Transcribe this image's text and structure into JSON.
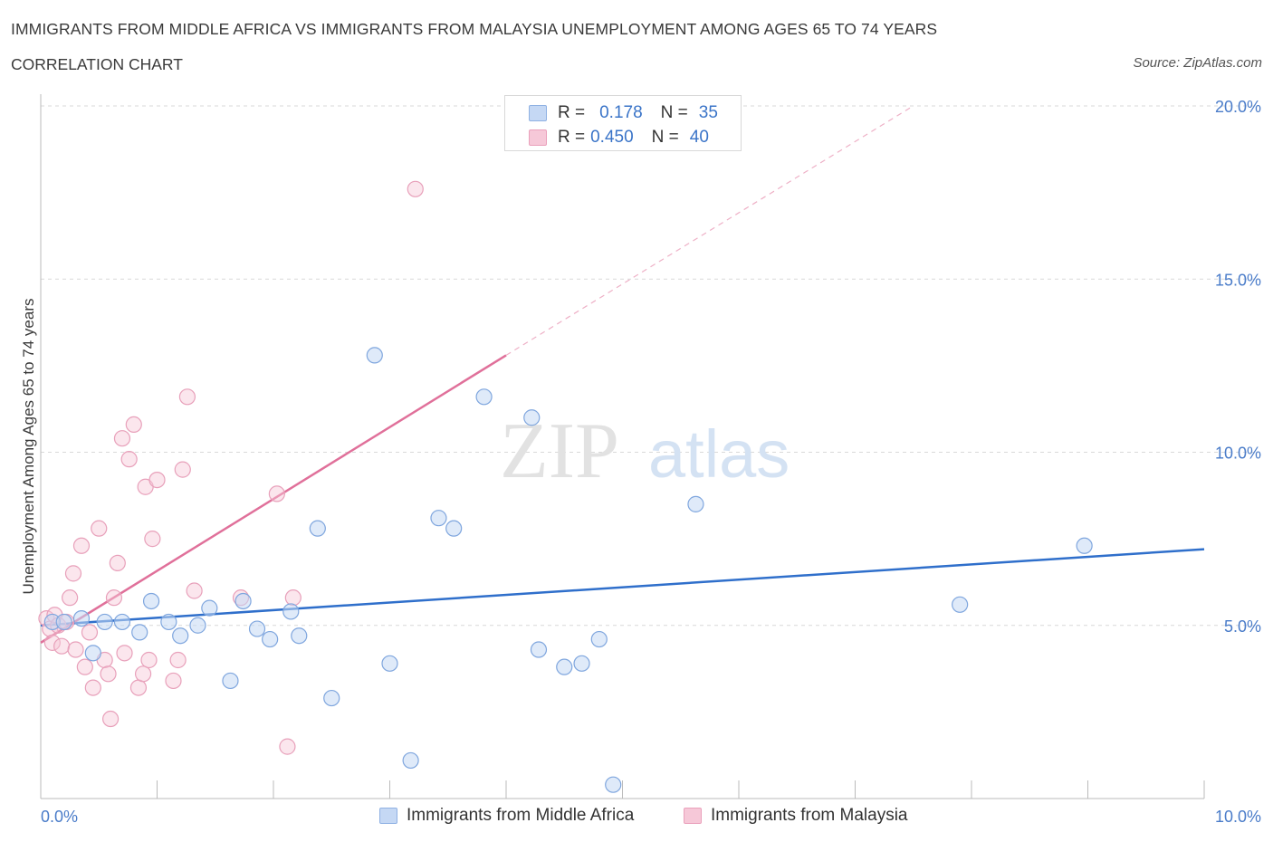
{
  "header": {
    "title": "IMMIGRANTS FROM MIDDLE AFRICA VS IMMIGRANTS FROM MALAYSIA UNEMPLOYMENT AMONG AGES 65 TO 74 YEARS",
    "subtitle": "CORRELATION CHART",
    "source": "Source: ZipAtlas.com"
  },
  "colors": {
    "blue": "#2f6fcb",
    "blue_fill": "#c5d8f4",
    "pink": "#e0709a",
    "pink_fill": "#f6c8d8",
    "grid": "#d9d9d9",
    "axis_text": "#4a7cc9"
  },
  "legend": {
    "blue": {
      "r_label": "R =",
      "r_value": "0.178",
      "n_label": "N =",
      "n_value": "35"
    },
    "pink": {
      "r_label": "R =",
      "r_value": "0.450",
      "n_label": "N =",
      "n_value": "40"
    }
  },
  "bottom_legend": {
    "blue": "Immigrants from Middle Africa",
    "pink": "Immigrants from Malaysia"
  },
  "watermark": {
    "zip": "ZIP",
    "atlas": "atlas"
  },
  "chart_data": {
    "type": "scatter",
    "title": "IMMIGRANTS FROM MIDDLE AFRICA VS IMMIGRANTS FROM MALAYSIA UNEMPLOYMENT AMONG AGES 65 TO 74 YEARS",
    "xlabel": "",
    "ylabel": "Unemployment Among Ages 65 to 74 years",
    "xlim": [
      0,
      10
    ],
    "ylim": [
      0,
      20
    ],
    "x_tick_labels": [
      "0.0%",
      "10.0%"
    ],
    "y_ticks": [
      5,
      10,
      15,
      20
    ],
    "y_tick_labels": [
      "5.0%",
      "10.0%",
      "15.0%",
      "20.0%"
    ],
    "grid": true,
    "legend_position": "top-center",
    "series": [
      {
        "name": "Immigrants from Middle Africa",
        "color": "#2f6fcb",
        "r": 0.178,
        "n": 35,
        "trend": {
          "x0": 0.0,
          "y0": 5.0,
          "x1": 10.0,
          "y1": 7.2
        },
        "points": [
          [
            0.1,
            5.1
          ],
          [
            0.2,
            5.1
          ],
          [
            0.35,
            5.2
          ],
          [
            0.45,
            4.2
          ],
          [
            0.55,
            5.1
          ],
          [
            0.7,
            5.1
          ],
          [
            0.85,
            4.8
          ],
          [
            0.95,
            5.7
          ],
          [
            1.1,
            5.1
          ],
          [
            1.2,
            4.7
          ],
          [
            1.35,
            5.0
          ],
          [
            1.45,
            5.5
          ],
          [
            1.63,
            3.4
          ],
          [
            1.74,
            5.7
          ],
          [
            1.86,
            4.9
          ],
          [
            1.97,
            4.6
          ],
          [
            2.15,
            5.4
          ],
          [
            2.22,
            4.7
          ],
          [
            2.38,
            7.8
          ],
          [
            2.5,
            2.9
          ],
          [
            2.87,
            12.8
          ],
          [
            3.0,
            3.9
          ],
          [
            3.18,
            1.1
          ],
          [
            3.42,
            8.1
          ],
          [
            3.55,
            7.8
          ],
          [
            3.81,
            11.6
          ],
          [
            4.22,
            11.0
          ],
          [
            4.28,
            4.3
          ],
          [
            4.5,
            3.8
          ],
          [
            4.65,
            3.9
          ],
          [
            4.8,
            4.6
          ],
          [
            4.92,
            0.4
          ],
          [
            5.63,
            8.5
          ],
          [
            7.9,
            5.6
          ],
          [
            8.97,
            7.3
          ]
        ]
      },
      {
        "name": "Immigrants from Malaysia",
        "color": "#e0709a",
        "r": 0.45,
        "n": 40,
        "trend": {
          "x0": 0.0,
          "y0": 4.5,
          "x1": 4.0,
          "y1": 12.8,
          "dash_x1": 7.5,
          "dash_y1": 20.0
        },
        "points": [
          [
            0.05,
            5.2
          ],
          [
            0.08,
            4.9
          ],
          [
            0.1,
            4.5
          ],
          [
            0.12,
            5.3
          ],
          [
            0.15,
            5.0
          ],
          [
            0.18,
            4.4
          ],
          [
            0.22,
            5.1
          ],
          [
            0.25,
            5.8
          ],
          [
            0.28,
            6.5
          ],
          [
            0.3,
            4.3
          ],
          [
            0.35,
            7.3
          ],
          [
            0.38,
            3.8
          ],
          [
            0.42,
            4.8
          ],
          [
            0.45,
            3.2
          ],
          [
            0.5,
            7.8
          ],
          [
            0.55,
            4.0
          ],
          [
            0.58,
            3.6
          ],
          [
            0.6,
            2.3
          ],
          [
            0.63,
            5.8
          ],
          [
            0.66,
            6.8
          ],
          [
            0.7,
            10.4
          ],
          [
            0.72,
            4.2
          ],
          [
            0.76,
            9.8
          ],
          [
            0.8,
            10.8
          ],
          [
            0.84,
            3.2
          ],
          [
            0.88,
            3.6
          ],
          [
            0.9,
            9.0
          ],
          [
            0.93,
            4.0
          ],
          [
            0.96,
            7.5
          ],
          [
            1.0,
            9.2
          ],
          [
            1.14,
            3.4
          ],
          [
            1.18,
            4.0
          ],
          [
            1.22,
            9.5
          ],
          [
            1.26,
            11.6
          ],
          [
            1.32,
            6.0
          ],
          [
            1.72,
            5.8
          ],
          [
            2.03,
            8.8
          ],
          [
            2.12,
            1.5
          ],
          [
            2.17,
            5.8
          ],
          [
            3.22,
            17.6
          ]
        ]
      }
    ]
  }
}
